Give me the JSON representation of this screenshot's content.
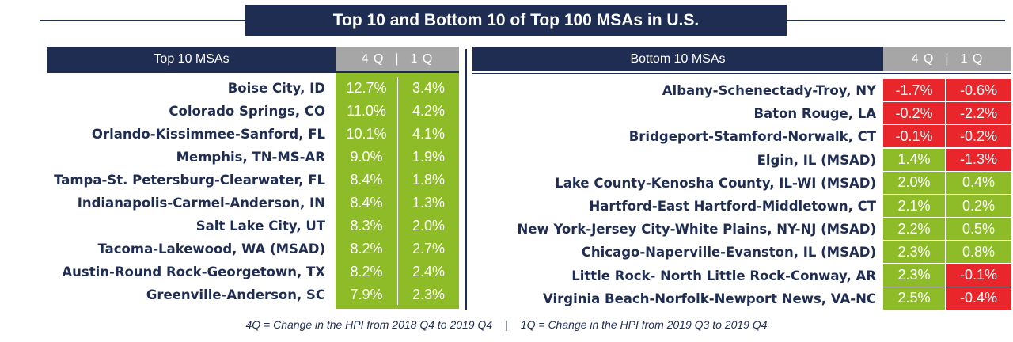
{
  "title": "Top 10 and Bottom 10 of Top 100 MSAs in U.S.",
  "column_labels": {
    "q4": "4 Q",
    "pipe": "|",
    "q1": "1 Q"
  },
  "top": {
    "header": "Top 10 MSAs",
    "rows": [
      {
        "name": "Boise City, ID",
        "q4": "12.7%",
        "q1": "3.4%"
      },
      {
        "name": "Colorado Springs, CO",
        "q4": "11.0%",
        "q1": "4.2%"
      },
      {
        "name": "Orlando-Kissimmee-Sanford, FL",
        "q4": "10.1%",
        "q1": "4.1%"
      },
      {
        "name": "Memphis, TN-MS-AR",
        "q4": "9.0%",
        "q1": "1.9%"
      },
      {
        "name": "Tampa-St. Petersburg-Clearwater, FL",
        "q4": "8.4%",
        "q1": "1.8%"
      },
      {
        "name": "Indianapolis-Carmel-Anderson, IN",
        "q4": "8.4%",
        "q1": "1.3%"
      },
      {
        "name": "Salt Lake City, UT",
        "q4": "8.3%",
        "q1": "2.0%"
      },
      {
        "name": "Tacoma-Lakewood, WA (MSAD)",
        "q4": "8.2%",
        "q1": "2.7%"
      },
      {
        "name": "Austin-Round Rock-Georgetown, TX",
        "q4": "8.2%",
        "q1": "2.4%"
      },
      {
        "name": "Greenville-Anderson, SC",
        "q4": "7.9%",
        "q1": "2.3%"
      }
    ]
  },
  "bottom": {
    "header": "Bottom 10 MSAs",
    "rows": [
      {
        "name": "Albany-Schenectady-Troy, NY",
        "q4": "-1.7%",
        "q1": "-0.6%",
        "q4_status": "negative",
        "q1_status": "negative"
      },
      {
        "name": "Baton Rouge, LA",
        "q4": "-0.2%",
        "q1": "-2.2%",
        "q4_status": "negative",
        "q1_status": "negative"
      },
      {
        "name": "Bridgeport-Stamford-Norwalk, CT",
        "q4": "-0.1%",
        "q1": "-0.2%",
        "q4_status": "negative",
        "q1_status": "negative"
      },
      {
        "name": "Elgin, IL (MSAD)",
        "q4": "1.4%",
        "q1": "-1.3%",
        "q4_status": "positive",
        "q1_status": "negative"
      },
      {
        "name": "Lake County-Kenosha County, IL-WI (MSAD)",
        "q4": "2.0%",
        "q1": "0.4%",
        "q4_status": "positive",
        "q1_status": "positive"
      },
      {
        "name": "Hartford-East Hartford-Middletown, CT",
        "q4": "2.1%",
        "q1": "0.2%",
        "q4_status": "positive",
        "q1_status": "positive"
      },
      {
        "name": "New York-Jersey City-White Plains, NY-NJ (MSAD)",
        "q4": "2.2%",
        "q1": "0.5%",
        "q4_status": "positive",
        "q1_status": "positive"
      },
      {
        "name": "Chicago-Naperville-Evanston, IL (MSAD)",
        "q4": "2.3%",
        "q1": "0.8%",
        "q4_status": "positive",
        "q1_status": "positive"
      },
      {
        "name": "Little Rock- North Little Rock-Conway, AR",
        "q4": "2.3%",
        "q1": "-0.1%",
        "q4_status": "positive",
        "q1_status": "negative"
      },
      {
        "name": "Virginia Beach-Norfolk-Newport News, VA-NC",
        "q4": "2.5%",
        "q1": "-0.4%",
        "q4_status": "positive",
        "q1_status": "negative"
      }
    ]
  },
  "footnote": {
    "left": "4Q = Change in the HPI from 2018 Q4 to 2019 Q4",
    "separator": "|",
    "right": "1Q = Change in the HPI from 2019 Q3 to 2019 Q4"
  },
  "colors": {
    "navy": "#1f2d52",
    "green": "#8dbc28",
    "red": "#e8262b",
    "gray": "#a6a6a6"
  }
}
